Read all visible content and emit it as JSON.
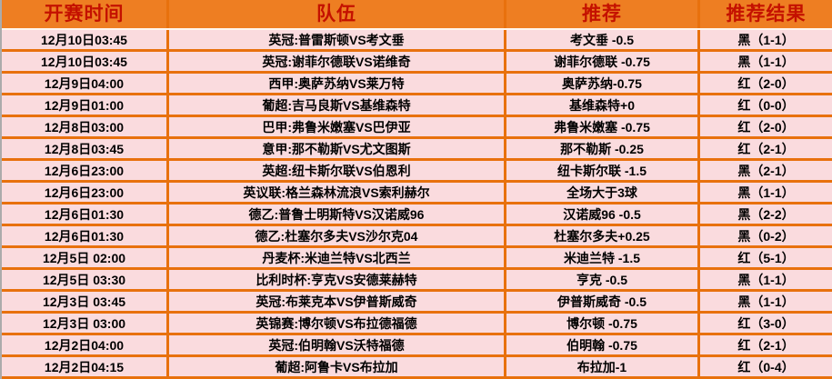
{
  "table": {
    "columns": [
      "开赛时间",
      "队伍",
      "推荐",
      "推荐结果"
    ],
    "rows": [
      {
        "time": "12月10日03:45",
        "teams": "英冠:普雷斯顿VS考文垂",
        "tip": "考文垂 -0.5",
        "result": "黑（1-1）"
      },
      {
        "time": "12月10日03:45",
        "teams": "英冠:谢菲尔德联VS诺维奇",
        "tip": "谢菲尔德联 -0.75",
        "result": "黑（1-1）"
      },
      {
        "time": "12月9日04:00",
        "teams": "西甲:奥萨苏纳VS莱万特",
        "tip": "奥萨苏纳-0.75",
        "result": "红（2-0）"
      },
      {
        "time": "12月9日01:00",
        "teams": "葡超:吉马良斯VS基维森特",
        "tip": "基维森特+0",
        "result": "红（0-0）"
      },
      {
        "time": "12月8日03:00",
        "teams": "巴甲:弗鲁米嫩塞VS巴伊亚",
        "tip": "弗鲁米嫩塞 -0.75",
        "result": "红（2-0）"
      },
      {
        "time": "12月8日03:45",
        "teams": "意甲:那不勒斯VS尤文图斯",
        "tip": "那不勒斯 -0.25",
        "result": "红（2-1）"
      },
      {
        "time": "12月6日23:00",
        "teams": "英超:纽卡斯尔联VS伯恩利",
        "tip": "纽卡斯尔联 -1.5",
        "result": "黑（2-1）"
      },
      {
        "time": "12月6日23:00",
        "teams": "英议联:格兰森林流浪VS索利赫尔",
        "tip": "全场大于3球",
        "result": "黑（1-1）"
      },
      {
        "time": "12月6日01:30",
        "teams": "德乙:普鲁士明斯特VS汉诺威96",
        "tip": "汉诺威96 -0.5",
        "result": "黑（2-2）"
      },
      {
        "time": "12月6日01:30",
        "teams": "德乙:杜塞尔多夫VS沙尔克04",
        "tip": "杜塞尔多夫+0.25",
        "result": "黑（0-2）"
      },
      {
        "time": "12月5日 02:00",
        "teams": "丹麦杯:米迪兰特VS北西兰",
        "tip": "米迪兰特 -1.5",
        "result": "红（5-1）"
      },
      {
        "time": "12月5日 03:30",
        "teams": "比利时杯:亨克VS安德莱赫特",
        "tip": "亨克 -0.5",
        "result": "黑（1-1）"
      },
      {
        "time": "12月3日 03:45",
        "teams": "英冠:布莱克本VS伊普斯威奇",
        "tip": "伊普斯威奇 -0.5",
        "result": "黑（1-1）"
      },
      {
        "time": "12月3日 03:00",
        "teams": "英锦赛:博尔顿VS布拉德福德",
        "tip": "博尔顿 -0.75",
        "result": "红（3-0）"
      },
      {
        "time": "12月2日04:00",
        "teams": "英冠:伯明翰VS沃特福德",
        "tip": "伯明翰 -0.75",
        "result": "红（2-1）"
      },
      {
        "time": "12月2日04:15",
        "teams": "葡超:阿鲁卡VS布拉加",
        "tip": "布拉加-1",
        "result": "红（0-4）"
      }
    ]
  },
  "colors": {
    "header_bg": "#EE7E22",
    "header_text": "#C41100",
    "grid": "#E8710D",
    "row_bg": "#FADBDE",
    "row_text": "#000000",
    "left_edge": "#ABABAB"
  }
}
